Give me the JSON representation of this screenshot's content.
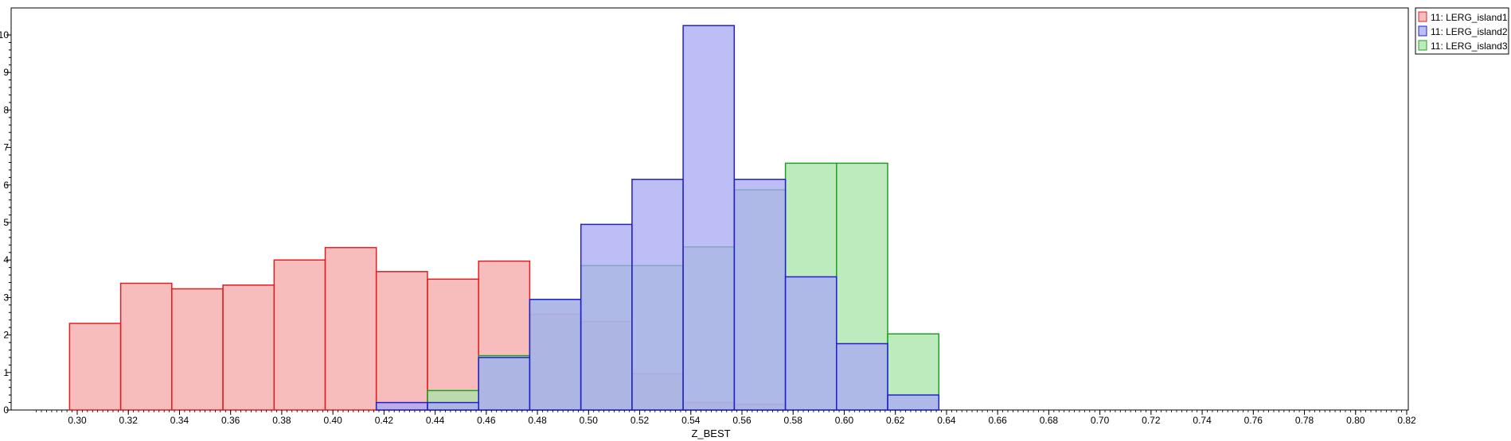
{
  "chart_data": {
    "type": "bar",
    "xlabel": "Z_BEST",
    "ylabel": "",
    "title": "",
    "xlim": [
      0.284,
      0.822
    ],
    "ylim": [
      0,
      10.2
    ],
    "x_ticks": [
      "0.30",
      "0.32",
      "0.34",
      "0.36",
      "0.38",
      "0.40",
      "0.42",
      "0.44",
      "0.46",
      "0.48",
      "0.50",
      "0.52",
      "0.54",
      "0.56",
      "0.58",
      "0.60",
      "0.62",
      "0.64",
      "0.66",
      "0.68",
      "0.70",
      "0.72",
      "0.74",
      "0.76",
      "0.78",
      "0.80",
      "0.82"
    ],
    "y_ticks": [
      "0",
      "1",
      "2",
      "3",
      "4",
      "5",
      "6",
      "7",
      "8",
      "9",
      "10"
    ],
    "legend_position": "top-right",
    "bin_edges": [
      0.297,
      0.317,
      0.337,
      0.357,
      0.377,
      0.397,
      0.417,
      0.437,
      0.457,
      0.477,
      0.497,
      0.517,
      0.537,
      0.557,
      0.577,
      0.597,
      0.617,
      0.637,
      0.657,
      0.677,
      0.697,
      0.717,
      0.737
    ],
    "bin_edges_right": [
      0.737,
      0.757,
      0.777,
      0.797,
      0.822
    ],
    "series": [
      {
        "name": "11: LERG_island1",
        "stroke": "#e02020",
        "fill": "#f4a6a6",
        "fill_opacity": 0.75,
        "bins": [
          [
            0.297,
            0.317,
            2.31
          ],
          [
            0.317,
            0.337,
            3.38
          ],
          [
            0.337,
            0.357,
            3.23
          ],
          [
            0.357,
            0.377,
            3.33
          ],
          [
            0.377,
            0.397,
            4.0
          ],
          [
            0.397,
            0.417,
            4.33
          ],
          [
            0.417,
            0.437,
            3.69
          ],
          [
            0.437,
            0.457,
            3.49
          ],
          [
            0.457,
            0.477,
            3.97
          ],
          [
            0.477,
            0.497,
            2.55
          ],
          [
            0.497,
            0.517,
            2.36
          ],
          [
            0.517,
            0.537,
            0.97
          ],
          [
            0.537,
            0.557,
            0.2
          ],
          [
            0.557,
            0.577,
            0.15
          ]
        ]
      },
      {
        "name": "11: LERG_island2",
        "stroke": "#2020d0",
        "fill": "#a8a8f4",
        "fill_opacity": 0.75,
        "bins": [
          [
            0.417,
            0.437,
            0.2
          ],
          [
            0.437,
            0.457,
            0.2
          ],
          [
            0.457,
            0.477,
            1.4
          ],
          [
            0.477,
            0.497,
            2.95
          ],
          [
            0.497,
            0.517,
            4.95
          ],
          [
            0.517,
            0.537,
            6.15
          ],
          [
            0.537,
            0.557,
            10.25
          ],
          [
            0.557,
            0.577,
            6.15
          ],
          [
            0.577,
            0.597,
            3.55
          ],
          [
            0.597,
            0.617,
            1.77
          ],
          [
            0.617,
            0.637,
            0.4
          ]
        ]
      },
      {
        "name": "11: LERG_island3",
        "stroke": "#20a020",
        "fill": "#a8e4a8",
        "fill_opacity": 0.75,
        "bins": [
          [
            0.437,
            0.457,
            0.52
          ],
          [
            0.457,
            0.477,
            1.45
          ],
          [
            0.477,
            0.497,
            2.95
          ],
          [
            0.497,
            0.517,
            3.85
          ],
          [
            0.517,
            0.537,
            3.85
          ],
          [
            0.537,
            0.557,
            4.35
          ],
          [
            0.557,
            0.577,
            5.87
          ],
          [
            0.577,
            0.597,
            6.58
          ],
          [
            0.597,
            0.617,
            6.58
          ],
          [
            0.617,
            0.637,
            2.03
          ]
        ]
      }
    ]
  }
}
